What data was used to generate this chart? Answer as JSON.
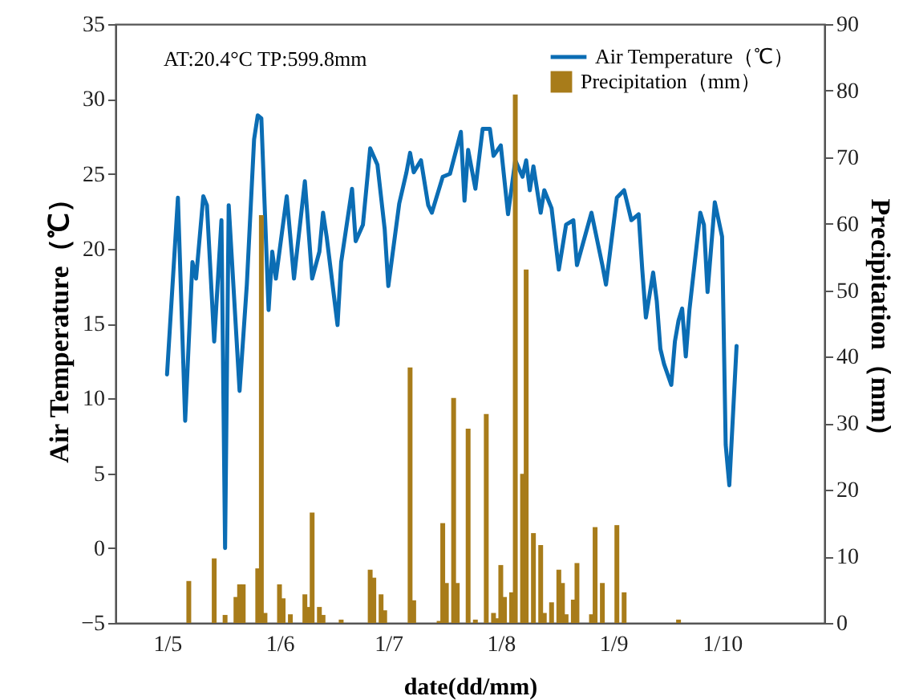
{
  "chart_data": {
    "type": "line",
    "xlabel": "date(dd/mm)",
    "ylabel": "Air Temperature（℃）",
    "y2label": "Precipitation（mm）",
    "annotations": [
      "AT:20.4°C   TP:599.8mm"
    ],
    "xlim": [
      "--04-19",
      "--10-27"
    ],
    "xticks": [
      {
        "value": "--05-01",
        "label": "1/5"
      },
      {
        "value": "--06-01",
        "label": "1/6"
      },
      {
        "value": "--07-01",
        "label": "1/7"
      },
      {
        "value": "--08-01",
        "label": "1/8"
      },
      {
        "value": "--09-01",
        "label": "1/9"
      },
      {
        "value": "--10-01",
        "label": "1/10"
      }
    ],
    "ylim": [
      -5,
      35
    ],
    "yticks": [
      -5,
      0,
      5,
      10,
      15,
      20,
      25,
      30,
      35
    ],
    "y2lim": [
      0,
      90
    ],
    "y2ticks": [
      0,
      10,
      20,
      30,
      40,
      50,
      60,
      70,
      80,
      90
    ],
    "legend": "top right",
    "line_style": "solid",
    "series": [
      {
        "name": "Air Temperature（℃）",
        "color": "#0b6db4",
        "x": [
          "--05-01",
          "--05-04",
          "--05-06",
          "--05-08",
          "--05-09",
          "--05-11",
          "--05-12",
          "--05-14",
          "--05-16",
          "--05-17",
          "--05-18",
          "--05-21",
          "--05-23",
          "--05-25",
          "--05-26",
          "--05-27",
          "--05-29",
          "--05-30",
          "--05-31",
          "--06-03",
          "--06-05",
          "--06-06",
          "--06-08",
          "--06-10",
          "--06-12",
          "--06-13",
          "--06-14",
          "--06-17",
          "--06-18",
          "--06-21",
          "--06-22",
          "--06-24",
          "--06-26",
          "--06-28",
          "--06-30",
          "--07-01",
          "--07-04",
          "--07-06",
          "--07-07",
          "--07-08",
          "--07-10",
          "--07-12",
          "--07-13",
          "--07-16",
          "--07-18",
          "--07-21",
          "--07-22",
          "--07-23",
          "--07-25",
          "--07-27",
          "--07-29",
          "--07-30",
          "--08-01",
          "--08-03",
          "--08-05",
          "--08-07",
          "--08-08",
          "--08-09",
          "--08-10",
          "--08-12",
          "--08-13",
          "--08-15",
          "--08-17",
          "--08-19",
          "--08-21",
          "--08-22",
          "--08-26",
          "--08-29",
          "--08-30",
          "--09-02",
          "--09-04",
          "--09-06",
          "--09-08",
          "--09-09",
          "--09-10",
          "--09-12",
          "--09-13",
          "--09-14",
          "--09-15",
          "--09-17",
          "--09-18",
          "--09-19",
          "--09-20",
          "--09-21",
          "--09-22",
          "--09-25",
          "--09-26",
          "--09-27",
          "--09-29",
          "--10-01",
          "--10-02",
          "--10-03",
          "--10-05"
        ],
        "values": [
          11.6,
          23.4,
          8.5,
          19.1,
          18.0,
          23.5,
          22.9,
          13.8,
          21.9,
          0.0,
          22.9,
          10.5,
          17.6,
          27.3,
          28.9,
          28.7,
          15.9,
          19.8,
          18.0,
          23.5,
          18.0,
          20.2,
          24.5,
          18.0,
          19.8,
          22.4,
          20.8,
          14.9,
          19.1,
          24.0,
          20.5,
          21.6,
          26.7,
          25.6,
          21.3,
          17.5,
          23.0,
          25.1,
          26.4,
          25.1,
          25.9,
          22.9,
          22.4,
          24.8,
          25.0,
          27.8,
          23.2,
          26.6,
          24.0,
          28.0,
          28.0,
          26.2,
          26.9,
          22.3,
          25.9,
          24.8,
          25.9,
          23.9,
          25.5,
          22.4,
          23.9,
          22.7,
          18.6,
          21.6,
          21.9,
          18.9,
          22.4,
          18.9,
          17.6,
          23.4,
          23.9,
          21.9,
          22.3,
          18.6,
          15.4,
          18.4,
          16.5,
          13.3,
          12.3,
          10.9,
          13.8,
          15.2,
          16.0,
          12.8,
          15.9,
          22.4,
          21.6,
          17.1,
          23.1,
          20.8,
          6.9,
          4.2,
          13.5
        ]
      },
      {
        "name": "Precipitation（mm）",
        "type": "bar",
        "axis": "y2",
        "color": "#a87c1a",
        "x": [
          "--05-07",
          "--05-14",
          "--05-17",
          "--05-20",
          "--05-21",
          "--05-22",
          "--05-26",
          "--05-27",
          "--05-28",
          "--06-01",
          "--06-02",
          "--06-04",
          "--06-08",
          "--06-09",
          "--06-10",
          "--06-12",
          "--06-13",
          "--06-18",
          "--06-26",
          "--06-27",
          "--06-29",
          "--06-30",
          "--07-07",
          "--07-08",
          "--07-15",
          "--07-16",
          "--07-17",
          "--07-19",
          "--07-20",
          "--07-23",
          "--07-25",
          "--07-28",
          "--07-30",
          "--07-31",
          "--08-01",
          "--08-02",
          "--08-04",
          "--08-05",
          "--08-07",
          "--08-08",
          "--08-10",
          "--08-12",
          "--08-13",
          "--08-15",
          "--08-17",
          "--08-18",
          "--08-19",
          "--08-21",
          "--08-22",
          "--08-26",
          "--08-27",
          "--08-29",
          "--09-02",
          "--09-04",
          "--09-19"
        ],
        "values": [
          6.3,
          9.7,
          1.2,
          3.9,
          5.8,
          5.8,
          8.2,
          61.3,
          1.5,
          5.8,
          3.7,
          1.3,
          4.3,
          2.4,
          16.6,
          2.4,
          1.2,
          0.5,
          8.0,
          6.8,
          4.3,
          1.9,
          38.4,
          3.4,
          0.3,
          15.0,
          6.0,
          33.8,
          6.0,
          29.2,
          0.5,
          31.4,
          1.5,
          0.7,
          8.7,
          3.9,
          4.6,
          79.4,
          22.4,
          53.1,
          13.5,
          11.7,
          1.5,
          3.1,
          8.0,
          6.0,
          1.3,
          3.5,
          9.0,
          1.3,
          14.4,
          6.0,
          14.7,
          4.6,
          0.5
        ]
      }
    ]
  }
}
